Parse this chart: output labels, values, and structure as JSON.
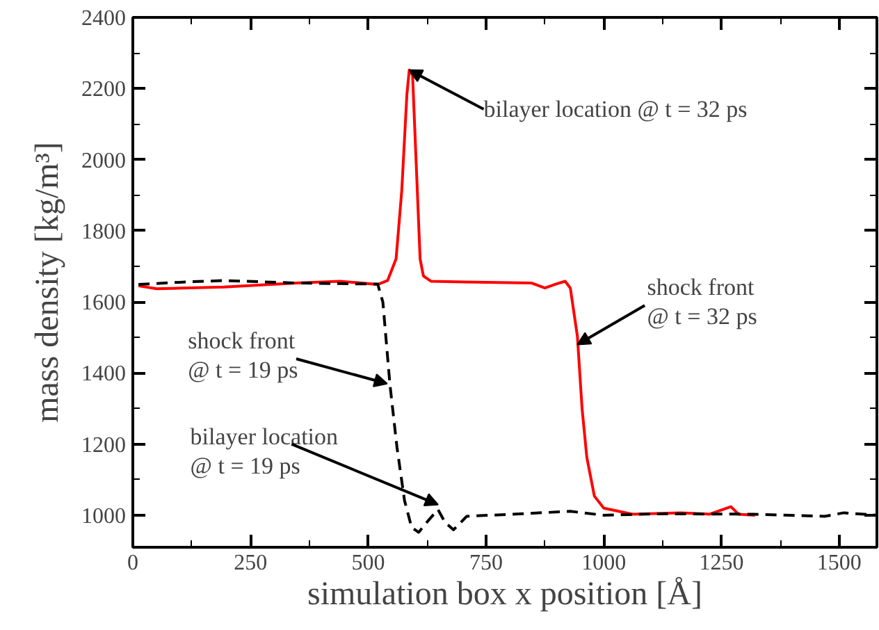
{
  "chart_data": {
    "type": "line",
    "xlabel": "simulation box x position [Å]",
    "ylabel": "mass density [kg/m³]",
    "xlim": [
      0,
      1580
    ],
    "ylim": [
      910,
      2400
    ],
    "xticks": [
      0,
      250,
      500,
      750,
      1000,
      1250,
      1500
    ],
    "yticks": [
      1000,
      1200,
      1400,
      1600,
      1800,
      2000,
      2200,
      2400
    ],
    "grid": false,
    "marker": "none",
    "series": [
      {
        "color": "#ff0000",
        "line_style": "solid",
        "x": [
          12,
          51,
          194,
          347,
          439,
          520,
          541,
          559,
          571,
          582,
          587,
          594,
          602,
          610,
          617,
          633,
          704,
          847,
          875,
          898,
          918,
          929,
          944,
          954,
          964,
          980,
          1000,
          1061,
          1163,
          1225,
          1270,
          1286,
          1321
        ],
        "values": [
          1645,
          1637,
          1642,
          1653,
          1658,
          1649,
          1660,
          1721,
          1912,
          2184,
          2252,
          2238,
          1980,
          1721,
          1673,
          1658,
          1656,
          1653,
          1639,
          1650,
          1658,
          1639,
          1503,
          1299,
          1163,
          1054,
          1020,
          1003,
          1007,
          1003,
          1024,
          1003,
          1000
        ]
      },
      {
        "color": "#000000",
        "line_style": "dashed",
        "x": [
          12,
          112,
          194,
          347,
          520,
          531,
          546,
          561,
          577,
          592,
          607,
          628,
          648,
          663,
          681,
          709,
          806,
          929,
          1000,
          1112,
          1317,
          1469,
          1510,
          1580
        ],
        "values": [
          1649,
          1656,
          1660,
          1653,
          1650,
          1599,
          1367,
          1190,
          1041,
          966,
          952,
          986,
          1016,
          980,
          959,
          997,
          1003,
          1011,
          1000,
          1004,
          1003,
          997,
          1007,
          1000
        ]
      }
    ],
    "annotations": [
      {
        "text": "bilayer location @ t = 32 ps",
        "x": 587,
        "y": 2252
      },
      {
        "text": "shock front\n @ t = 32 ps",
        "x": 944,
        "y": 1480
      },
      {
        "text": "shock front\n @ t = 19 ps",
        "x": 540,
        "y": 1370
      },
      {
        "text": "bilayer location\n @ t = 19 ps",
        "x": 648,
        "y": 1030
      }
    ]
  }
}
